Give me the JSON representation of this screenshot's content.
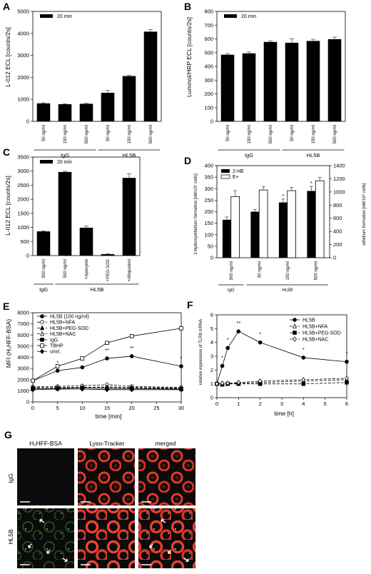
{
  "chart_data": [
    {
      "id": "A",
      "type": "bar",
      "panel_label": "A",
      "ylabel": "L-012 ECL [counts/2s]",
      "ylim": [
        0,
        5000
      ],
      "yticks": [
        0,
        1000,
        2000,
        3000,
        4000,
        5000
      ],
      "legend": "20 min",
      "categories": [
        "50 ng/ml",
        "150 ng/ml",
        "500 ng/ml",
        "50 ng/ml",
        "150 ng/ml",
        "500 ng/ml"
      ],
      "values": [
        820,
        780,
        800,
        1300,
        2060,
        4080
      ],
      "errors": [
        25,
        20,
        20,
        110,
        30,
        90
      ],
      "groups": [
        {
          "label": "IgG",
          "from": 0,
          "to": 2
        },
        {
          "label": "HL5B",
          "from": 3,
          "to": 5
        }
      ]
    },
    {
      "id": "B",
      "type": "bar",
      "panel_label": "B",
      "ylabel": "Luminol/HRP ECL [counts/2s]",
      "ylim": [
        0,
        800
      ],
      "yticks": [
        0,
        100,
        200,
        300,
        400,
        500,
        600,
        700,
        800
      ],
      "legend": "20 min",
      "categories": [
        "50 ng/ml",
        "150 ng/ml",
        "500 ng/ml",
        "50 ng/ml",
        "150 ng/ml",
        "500 ng/ml"
      ],
      "values": [
        485,
        495,
        578,
        572,
        585,
        598
      ],
      "errors": [
        8,
        10,
        8,
        30,
        12,
        15
      ],
      "groups": [
        {
          "label": "IgG",
          "from": 0,
          "to": 2
        },
        {
          "label": "HL5B",
          "from": 3,
          "to": 5
        }
      ]
    },
    {
      "id": "C",
      "type": "bar",
      "panel_label": "C",
      "ylabel": "L-012 ECL [counts/2s]",
      "ylim": [
        0,
        3500
      ],
      "yticks": [
        0,
        500,
        1000,
        1500,
        2000,
        2500,
        3000,
        3500
      ],
      "legend": "20 min",
      "categories": [
        "500 ng/ml",
        "500 ng/ml",
        "+Apocynin",
        "+PEG-SOD",
        "+Allopurinol"
      ],
      "values": [
        860,
        2970,
        990,
        50,
        2760
      ],
      "errors": [
        20,
        25,
        60,
        10,
        150
      ],
      "groups": [
        {
          "label": "IgG",
          "from": 0,
          "to": 0
        },
        {
          "label": "HL5B",
          "from": 1,
          "to": 4
        }
      ]
    },
    {
      "id": "D",
      "type": "bar",
      "panel_label": "D",
      "ylabel": "2-hydroxyethidium formation [nM/10⁶ cells]",
      "ylabel2": "ethidium formation [nM/10⁶ cells]",
      "ylim": [
        0,
        400
      ],
      "yticks": [
        0,
        50,
        100,
        150,
        200,
        250,
        300,
        350,
        400
      ],
      "ylim2": [
        0,
        1400
      ],
      "yticks2": [
        0,
        200,
        400,
        600,
        800,
        1000,
        1200,
        1400
      ],
      "categories": [
        "500 ng/ml",
        "50 ng/ml",
        "150 ng/ml",
        "500 ng/ml"
      ],
      "series": [
        {
          "name": "2-HE",
          "values": [
            165,
            200,
            240,
            290
          ],
          "errors": [
            12,
            10,
            15,
            20
          ]
        },
        {
          "name": "E+",
          "values": [
            930,
            1030,
            1020,
            1170
          ],
          "errors": [
            90,
            50,
            50,
            50
          ]
        }
      ],
      "stars": [
        "",
        "",
        "*",
        "*"
      ],
      "groups": [
        {
          "label": "IgG",
          "from": 0,
          "to": 0
        },
        {
          "label": "HL5B",
          "from": 1,
          "to": 3
        }
      ]
    },
    {
      "id": "E",
      "type": "line",
      "panel_label": "E",
      "ylabel": "MFI (H₂HFF-BSA)",
      "xlabel": "time [min]",
      "xlim": [
        0,
        30
      ],
      "xticks": [
        0,
        5,
        10,
        15,
        20,
        25,
        30
      ],
      "ylim": [
        0,
        8000
      ],
      "yticks": [
        0,
        1000,
        2000,
        3000,
        4000,
        5000,
        6000,
        7000,
        8000
      ],
      "x": [
        0,
        5,
        10,
        15,
        20,
        30
      ],
      "series": [
        {
          "name": "HL5B (100 ng/ml)",
          "marker": "filled-circle",
          "dash": "",
          "values": [
            1900,
            2800,
            3100,
            3900,
            4100,
            3200
          ],
          "stars": [
            "",
            "*",
            "*",
            "**",
            "**",
            "*"
          ]
        },
        {
          "name": "HL5B+NFA",
          "marker": "open-circle",
          "dash": "4,2",
          "values": [
            1350,
            1400,
            1450,
            1550,
            1400,
            1300
          ]
        },
        {
          "name": "HL5B+PEG-SOD",
          "marker": "filled-triangle",
          "dash": "4,2",
          "values": [
            1300,
            1250,
            1300,
            1350,
            1300,
            1250
          ]
        },
        {
          "name": "HL5B+NAC",
          "marker": "open-triangle",
          "dash": "4,2",
          "values": [
            1250,
            1300,
            1300,
            1300,
            1250,
            1200
          ]
        },
        {
          "name": "IgG",
          "marker": "filled-square",
          "dash": "",
          "values": [
            1200,
            1200,
            1250,
            1200,
            1200,
            1150
          ]
        },
        {
          "name": "TBHP",
          "marker": "open-square",
          "dash": "",
          "values": [
            1900,
            3200,
            3900,
            5300,
            5900,
            6600
          ]
        },
        {
          "name": "unst.",
          "marker": "filled-diamond",
          "dash": "",
          "values": [
            1100,
            1150,
            1150,
            1100,
            1100,
            1100
          ]
        }
      ]
    },
    {
      "id": "F",
      "type": "line",
      "panel_label": "F",
      "ylabel": "relative expression of TLR8 mRNA",
      "xlabel": "time [h]",
      "xlim": [
        0,
        6
      ],
      "xticks": [
        0,
        1,
        2,
        3,
        4,
        5,
        6
      ],
      "ylim": [
        0,
        6
      ],
      "yticks": [
        0,
        1,
        2,
        3,
        4,
        5,
        6
      ],
      "x": [
        0,
        0.25,
        0.5,
        1,
        2,
        4,
        6
      ],
      "series": [
        {
          "name": "HL5B",
          "marker": "filled-circle",
          "dash": "",
          "values": [
            1.0,
            2.3,
            3.6,
            4.8,
            4.0,
            2.9,
            2.6
          ],
          "stars": [
            "",
            "*",
            "*",
            "**",
            "*",
            "*",
            "*"
          ]
        },
        {
          "name": "HL5B+NFA",
          "marker": "open-triangle",
          "dash": "4,2",
          "values": [
            1.0,
            1.0,
            1.0,
            1.05,
            1.1,
            1.2,
            1.3
          ]
        },
        {
          "name": "HL5B+PEG-SOD",
          "marker": "filled-square",
          "dash": "4,2",
          "values": [
            1.0,
            0.95,
            1.0,
            1.0,
            1.0,
            1.0,
            1.1
          ]
        },
        {
          "name": "HL5B+NAC",
          "marker": "open-diamond",
          "dash": "4,2",
          "values": [
            1.0,
            1.05,
            1.05,
            1.1,
            1.2,
            1.3,
            1.4
          ]
        }
      ]
    }
  ],
  "panel_g": {
    "panel_label": "G",
    "col_headers": [
      "H₂HFF-BSA",
      "Lyso-Tracker",
      "merged"
    ],
    "row_headers": [
      "IgG",
      "HL5B"
    ],
    "colors": {
      "green": "#7fd25f",
      "red": "#e63a2a",
      "background": "#0b0b0b"
    }
  }
}
